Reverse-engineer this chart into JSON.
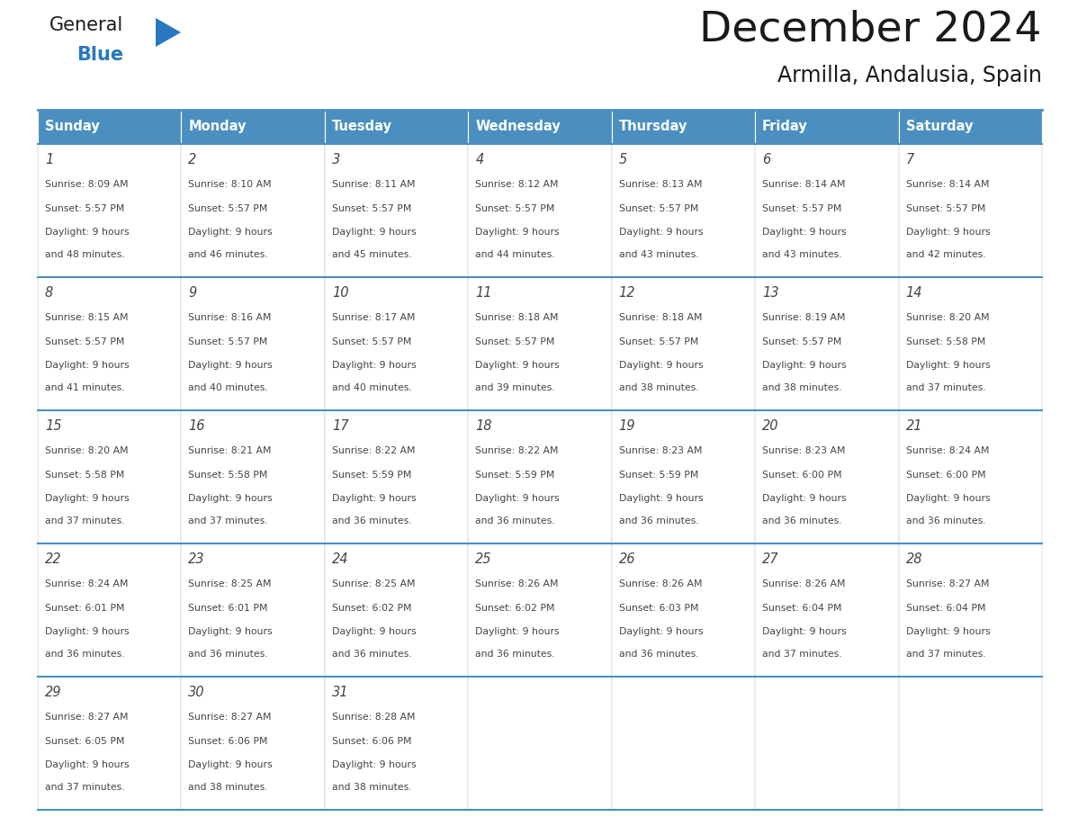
{
  "title": "December 2024",
  "subtitle": "Armilla, Andalusia, Spain",
  "header_color": "#4a8fc0",
  "header_text_color": "#ffffff",
  "border_color": "#4a8fc0",
  "days_of_week": [
    "Sunday",
    "Monday",
    "Tuesday",
    "Wednesday",
    "Thursday",
    "Friday",
    "Saturday"
  ],
  "weeks": [
    [
      {
        "day": "1",
        "sunrise": "8:09 AM",
        "sunset": "5:57 PM",
        "daylight_h": "9 hours",
        "daylight_m": "and 48 minutes."
      },
      {
        "day": "2",
        "sunrise": "8:10 AM",
        "sunset": "5:57 PM",
        "daylight_h": "9 hours",
        "daylight_m": "and 46 minutes."
      },
      {
        "day": "3",
        "sunrise": "8:11 AM",
        "sunset": "5:57 PM",
        "daylight_h": "9 hours",
        "daylight_m": "and 45 minutes."
      },
      {
        "day": "4",
        "sunrise": "8:12 AM",
        "sunset": "5:57 PM",
        "daylight_h": "9 hours",
        "daylight_m": "and 44 minutes."
      },
      {
        "day": "5",
        "sunrise": "8:13 AM",
        "sunset": "5:57 PM",
        "daylight_h": "9 hours",
        "daylight_m": "and 43 minutes."
      },
      {
        "day": "6",
        "sunrise": "8:14 AM",
        "sunset": "5:57 PM",
        "daylight_h": "9 hours",
        "daylight_m": "and 43 minutes."
      },
      {
        "day": "7",
        "sunrise": "8:14 AM",
        "sunset": "5:57 PM",
        "daylight_h": "9 hours",
        "daylight_m": "and 42 minutes."
      }
    ],
    [
      {
        "day": "8",
        "sunrise": "8:15 AM",
        "sunset": "5:57 PM",
        "daylight_h": "9 hours",
        "daylight_m": "and 41 minutes."
      },
      {
        "day": "9",
        "sunrise": "8:16 AM",
        "sunset": "5:57 PM",
        "daylight_h": "9 hours",
        "daylight_m": "and 40 minutes."
      },
      {
        "day": "10",
        "sunrise": "8:17 AM",
        "sunset": "5:57 PM",
        "daylight_h": "9 hours",
        "daylight_m": "and 40 minutes."
      },
      {
        "day": "11",
        "sunrise": "8:18 AM",
        "sunset": "5:57 PM",
        "daylight_h": "9 hours",
        "daylight_m": "and 39 minutes."
      },
      {
        "day": "12",
        "sunrise": "8:18 AM",
        "sunset": "5:57 PM",
        "daylight_h": "9 hours",
        "daylight_m": "and 38 minutes."
      },
      {
        "day": "13",
        "sunrise": "8:19 AM",
        "sunset": "5:57 PM",
        "daylight_h": "9 hours",
        "daylight_m": "and 38 minutes."
      },
      {
        "day": "14",
        "sunrise": "8:20 AM",
        "sunset": "5:58 PM",
        "daylight_h": "9 hours",
        "daylight_m": "and 37 minutes."
      }
    ],
    [
      {
        "day": "15",
        "sunrise": "8:20 AM",
        "sunset": "5:58 PM",
        "daylight_h": "9 hours",
        "daylight_m": "and 37 minutes."
      },
      {
        "day": "16",
        "sunrise": "8:21 AM",
        "sunset": "5:58 PM",
        "daylight_h": "9 hours",
        "daylight_m": "and 37 minutes."
      },
      {
        "day": "17",
        "sunrise": "8:22 AM",
        "sunset": "5:59 PM",
        "daylight_h": "9 hours",
        "daylight_m": "and 36 minutes."
      },
      {
        "day": "18",
        "sunrise": "8:22 AM",
        "sunset": "5:59 PM",
        "daylight_h": "9 hours",
        "daylight_m": "and 36 minutes."
      },
      {
        "day": "19",
        "sunrise": "8:23 AM",
        "sunset": "5:59 PM",
        "daylight_h": "9 hours",
        "daylight_m": "and 36 minutes."
      },
      {
        "day": "20",
        "sunrise": "8:23 AM",
        "sunset": "6:00 PM",
        "daylight_h": "9 hours",
        "daylight_m": "and 36 minutes."
      },
      {
        "day": "21",
        "sunrise": "8:24 AM",
        "sunset": "6:00 PM",
        "daylight_h": "9 hours",
        "daylight_m": "and 36 minutes."
      }
    ],
    [
      {
        "day": "22",
        "sunrise": "8:24 AM",
        "sunset": "6:01 PM",
        "daylight_h": "9 hours",
        "daylight_m": "and 36 minutes."
      },
      {
        "day": "23",
        "sunrise": "8:25 AM",
        "sunset": "6:01 PM",
        "daylight_h": "9 hours",
        "daylight_m": "and 36 minutes."
      },
      {
        "day": "24",
        "sunrise": "8:25 AM",
        "sunset": "6:02 PM",
        "daylight_h": "9 hours",
        "daylight_m": "and 36 minutes."
      },
      {
        "day": "25",
        "sunrise": "8:26 AM",
        "sunset": "6:02 PM",
        "daylight_h": "9 hours",
        "daylight_m": "and 36 minutes."
      },
      {
        "day": "26",
        "sunrise": "8:26 AM",
        "sunset": "6:03 PM",
        "daylight_h": "9 hours",
        "daylight_m": "and 36 minutes."
      },
      {
        "day": "27",
        "sunrise": "8:26 AM",
        "sunset": "6:04 PM",
        "daylight_h": "9 hours",
        "daylight_m": "and 37 minutes."
      },
      {
        "day": "28",
        "sunrise": "8:27 AM",
        "sunset": "6:04 PM",
        "daylight_h": "9 hours",
        "daylight_m": "and 37 minutes."
      }
    ],
    [
      {
        "day": "29",
        "sunrise": "8:27 AM",
        "sunset": "6:05 PM",
        "daylight_h": "9 hours",
        "daylight_m": "and 37 minutes."
      },
      {
        "day": "30",
        "sunrise": "8:27 AM",
        "sunset": "6:06 PM",
        "daylight_h": "9 hours",
        "daylight_m": "and 38 minutes."
      },
      {
        "day": "31",
        "sunrise": "8:28 AM",
        "sunset": "6:06 PM",
        "daylight_h": "9 hours",
        "daylight_m": "and 38 minutes."
      },
      null,
      null,
      null,
      null
    ]
  ],
  "logo_general_color": "#1a1a1a",
  "logo_blue_color": "#2878c0",
  "logo_triangle_color": "#2878c0",
  "fig_width": 11.88,
  "fig_height": 9.18,
  "dpi": 100
}
